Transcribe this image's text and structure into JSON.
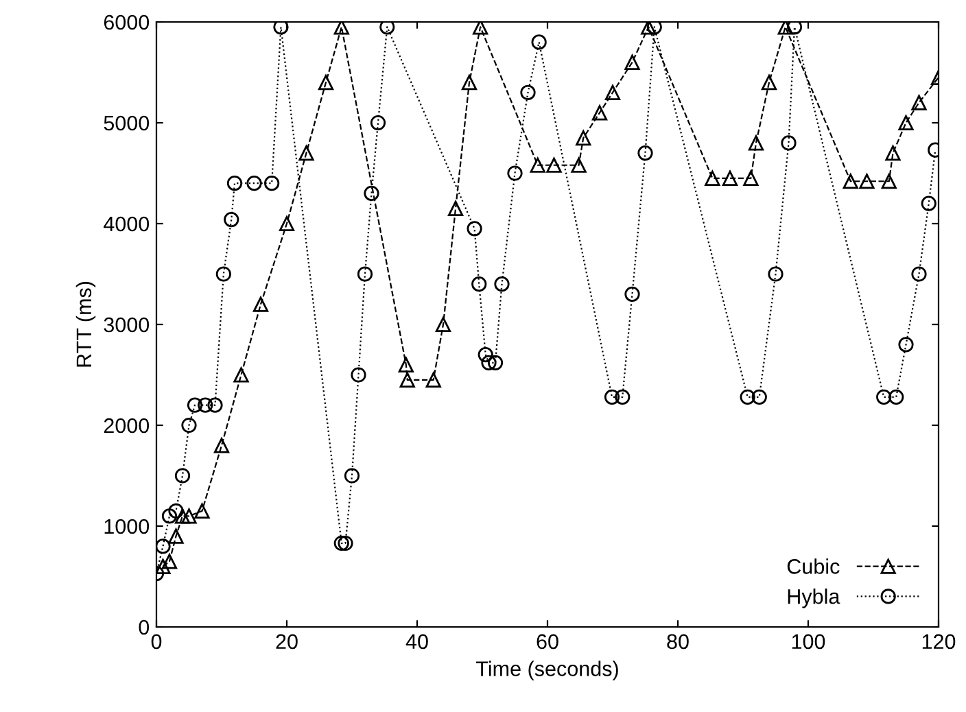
{
  "chart_data": {
    "type": "line",
    "xlabel": "Time (seconds)",
    "ylabel": "RTT (ms)",
    "xlim": [
      0,
      120
    ],
    "ylim": [
      0,
      6000
    ],
    "xticks": [
      0,
      20,
      40,
      60,
      80,
      100,
      120
    ],
    "yticks": [
      0,
      1000,
      2000,
      3000,
      4000,
      5000,
      6000
    ],
    "grid": false,
    "legend": "bottom right",
    "series": [
      {
        "name": "Cubic",
        "color": "#000000",
        "marker": "triangle",
        "line_style": "dashed",
        "x": [
          1,
          2,
          3,
          4,
          5,
          7,
          10,
          13,
          16,
          20,
          23,
          26,
          28.4,
          38.3,
          38.5,
          42.5,
          44,
          45.9,
          48,
          49.7,
          58.5,
          61,
          64.8,
          65.5,
          68,
          70,
          73,
          75.5,
          85.3,
          88,
          91.2,
          92,
          94,
          96.5,
          106.5,
          109,
          112.4,
          113,
          115,
          117,
          120
        ],
        "values": [
          600,
          650,
          900,
          1100,
          1100,
          1150,
          1800,
          2500,
          3200,
          4000,
          4700,
          5400,
          5950,
          2600,
          2450,
          2450,
          3000,
          4150,
          5400,
          5950,
          4580,
          4580,
          4580,
          4850,
          5100,
          5300,
          5600,
          5950,
          4450,
          4450,
          4450,
          4800,
          5400,
          5950,
          4420,
          4420,
          4420,
          4700,
          5000,
          5200,
          5450
        ]
      },
      {
        "name": "Hybla",
        "color": "#000000",
        "marker": "circle",
        "line_style": "dotted",
        "x": [
          0,
          1,
          2,
          3,
          4,
          5,
          5.9,
          7.5,
          9,
          10.3,
          11.5,
          12,
          15,
          17.7,
          19.1,
          28.4,
          29,
          30,
          31,
          32,
          33,
          34,
          35.4,
          48.8,
          49.5,
          50.5,
          51,
          52,
          53,
          55,
          57,
          58.7,
          69.9,
          71.5,
          73,
          75,
          76.4,
          90.7,
          92.5,
          95,
          97,
          97.9,
          111.6,
          113.5,
          115,
          117,
          118.5,
          119.5
        ],
        "values": [
          530,
          800,
          1100,
          1150,
          1500,
          2000,
          2200,
          2200,
          2200,
          3500,
          4040,
          4400,
          4400,
          4400,
          5950,
          830,
          830,
          1500,
          2500,
          3500,
          4300,
          5000,
          5950,
          3950,
          3400,
          2700,
          2620,
          2620,
          3400,
          4500,
          5300,
          5800,
          2280,
          2280,
          3300,
          4700,
          5950,
          2280,
          2280,
          3500,
          4800,
          5950,
          2280,
          2280,
          2800,
          3500,
          4200,
          4730
        ]
      }
    ]
  }
}
